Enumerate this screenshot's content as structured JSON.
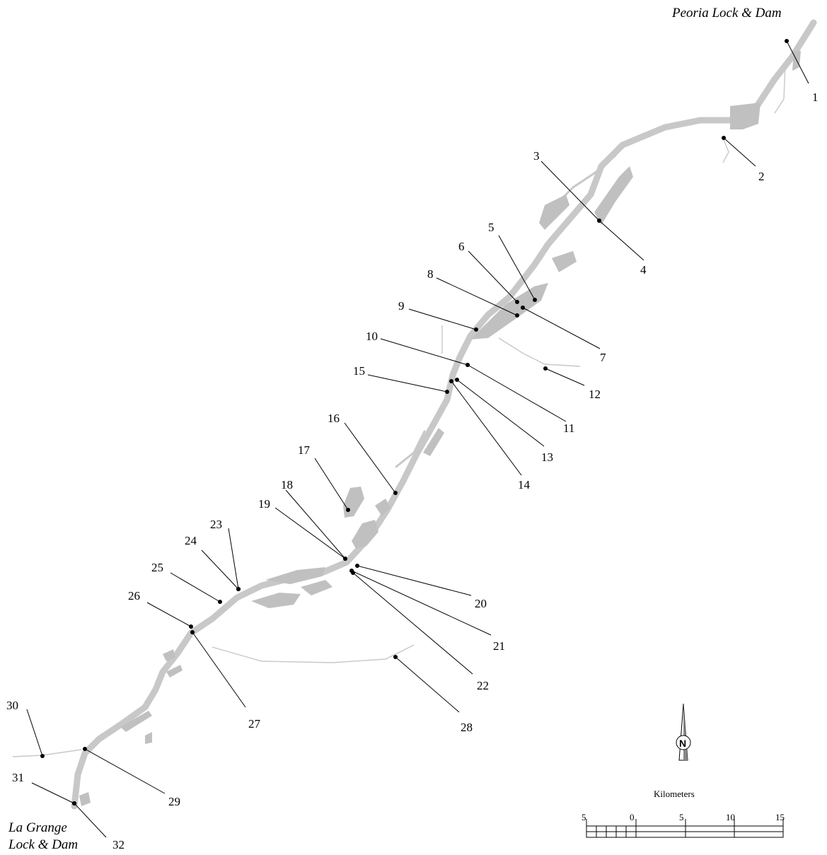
{
  "places": {
    "upstream": "Peoria Lock & Dam",
    "downstream_line1": "La Grange",
    "downstream_line2": "Lock & Dam"
  },
  "sites": [
    "1",
    "2",
    "3",
    "4",
    "5",
    "6",
    "7",
    "8",
    "9",
    "10",
    "11",
    "12",
    "13",
    "14",
    "15",
    "16",
    "17",
    "18",
    "19",
    "20",
    "21",
    "22",
    "23",
    "24",
    "25",
    "26",
    "27",
    "28",
    "29",
    "30",
    "31",
    "32"
  ],
  "scale": {
    "title": "Kilometers",
    "ticks": [
      "5",
      "0",
      "5",
      "10",
      "15"
    ]
  },
  "north_arrow": {
    "letter": "N",
    "icon": "north-arrow-icon"
  },
  "colors": {
    "water": "#c0c0c0",
    "ink": "#000000"
  }
}
